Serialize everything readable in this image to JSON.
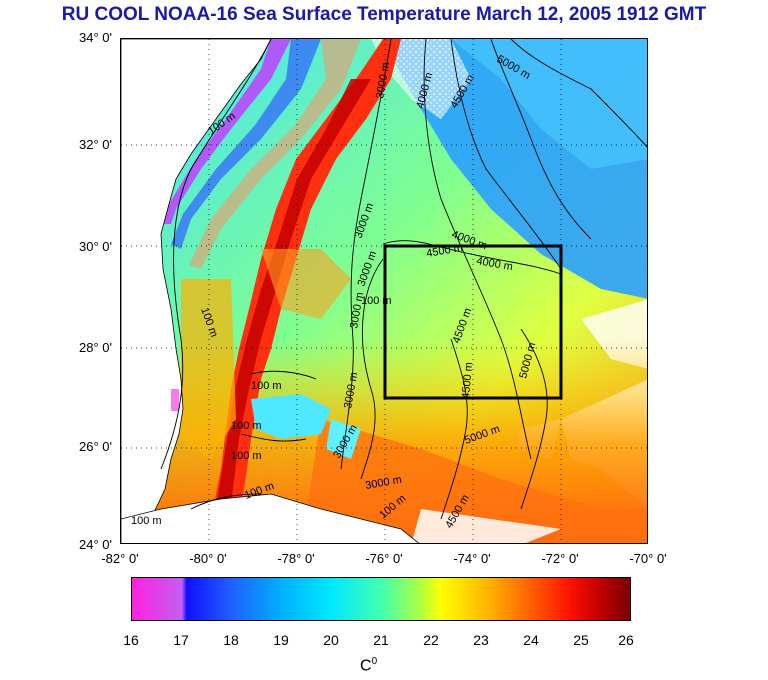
{
  "title": "RU COOL  NOAA-16 Sea Surface Temperature March 12, 2005 1912 GMT",
  "map": {
    "lat_labels": [
      "34° 0'",
      "32° 0'",
      "30° 0'",
      "28° 0'",
      "26° 0'",
      "24° 0'"
    ],
    "lon_labels": [
      "-82° 0'",
      "-80° 0'",
      "-78° 0'",
      "-76° 0'",
      "-74° 0'",
      "-72° 0'",
      "-70° 0'"
    ],
    "lat_range": [
      24,
      34
    ],
    "lon_range": [
      -82,
      -70
    ],
    "study_box": {
      "lon": [
        -76,
        -72
      ],
      "lat": [
        27,
        30
      ]
    },
    "contour_labels": [
      "3000 m",
      "4000 m",
      "4500 m",
      "5000 m",
      "100 m",
      "100 m",
      "100 m",
      "100 m",
      "100 m",
      "100 m",
      "3000 m",
      "3000 m",
      "3000 m",
      "4500 m",
      "4000 m",
      "4000 m",
      "4500 m",
      "4500 m",
      "5000 m",
      "3000 m",
      "5000 m",
      "100 m",
      "100 m",
      "3000 m",
      "3000 m",
      "4500 m",
      "100 m"
    ]
  },
  "colorbar": {
    "ticks": [
      "16",
      "17",
      "18",
      "19",
      "20",
      "21",
      "22",
      "23",
      "24",
      "25",
      "26"
    ],
    "unit": "C",
    "unit_sup": "0",
    "colors": {
      "min": "#ff20e0",
      "low": "#1010ff",
      "mid": "#b0ff40",
      "high": "#ff1000",
      "max": "#7a0000"
    }
  },
  "colors": {
    "title": "#1a1aa6",
    "land": "#ffffff",
    "cloud": "#ffffff"
  }
}
